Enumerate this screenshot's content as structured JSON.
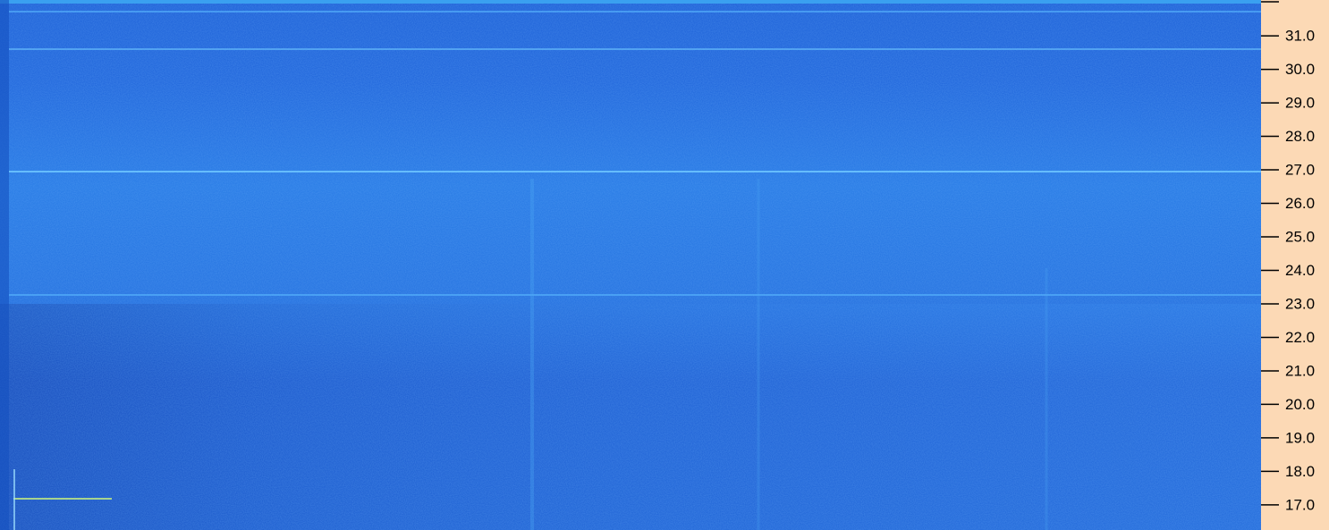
{
  "chart_data": {
    "type": "spectrogram",
    "ylim": [
      16.25,
      32.07
    ],
    "yticks": [
      {
        "value": 17,
        "label": "17.0"
      },
      {
        "value": 18,
        "label": "18.0"
      },
      {
        "value": 19,
        "label": "19.0"
      },
      {
        "value": 20,
        "label": "20.0"
      },
      {
        "value": 21,
        "label": "21.0"
      },
      {
        "value": 22,
        "label": "22.0"
      },
      {
        "value": 23,
        "label": "23.0"
      },
      {
        "value": 24,
        "label": "24.0"
      },
      {
        "value": 25,
        "label": "25.0"
      },
      {
        "value": 26,
        "label": "26.0"
      },
      {
        "value": 27,
        "label": "27.0"
      },
      {
        "value": 28,
        "label": "28.0"
      },
      {
        "value": 29,
        "label": "29.0"
      },
      {
        "value": 30,
        "label": "30.0"
      },
      {
        "value": 31,
        "label": "31.0"
      }
    ]
  }
}
